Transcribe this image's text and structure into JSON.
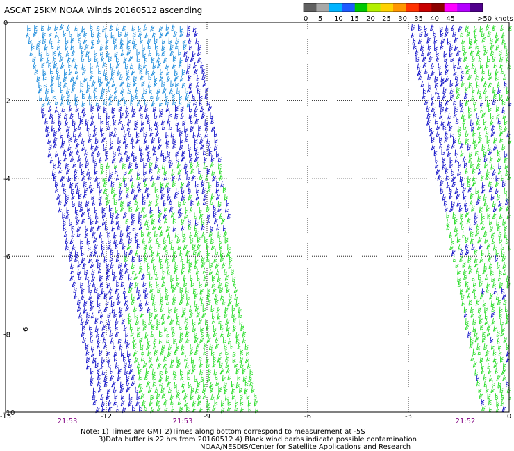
{
  "title": "ASCAT 25KM NOAA Winds 20160512 ascending",
  "colorbar": {
    "ticks": [
      "0",
      "5",
      "10",
      "15",
      "20",
      "25",
      "30",
      "35",
      "40",
      "45",
      ">50 knots"
    ],
    "colors": [
      "#606060",
      "#a8a8a8",
      "#00b4ff",
      "#1e5aff",
      "#00c800",
      "#b4f000",
      "#ffd200",
      "#ff9600",
      "#ff3200",
      "#c80000",
      "#8b0000",
      "#ff00ff",
      "#b400ff",
      "#50008c"
    ]
  },
  "axes": {
    "y_ticks": [
      "0",
      "-2",
      "-4",
      "-6",
      "-8",
      "-10"
    ],
    "x_ticks": [
      "-15",
      "-12",
      "-9",
      "-6",
      "-3",
      "0"
    ],
    "lat_range": [
      -10,
      0
    ],
    "lon_range": [
      -15,
      0
    ]
  },
  "pass_times": [
    "21:53",
    "21:53",
    "21:52"
  ],
  "side_label": "6",
  "colors": {
    "barb_light_blue": "#1e8cdc",
    "barb_blue": "#1414c8",
    "barb_green": "#28dc28",
    "time_label": "#800080"
  },
  "notes": {
    "line1": "Note: 1) Times are GMT 2)Times along bottom correspond to measurement at -5S",
    "line2": "3)Data buffer is 22 hrs from 20160512 4) Black wind barbs indicate possible contamination",
    "line3": "NOAA/NESDIS/Center for Satellite Applications and Research"
  }
}
